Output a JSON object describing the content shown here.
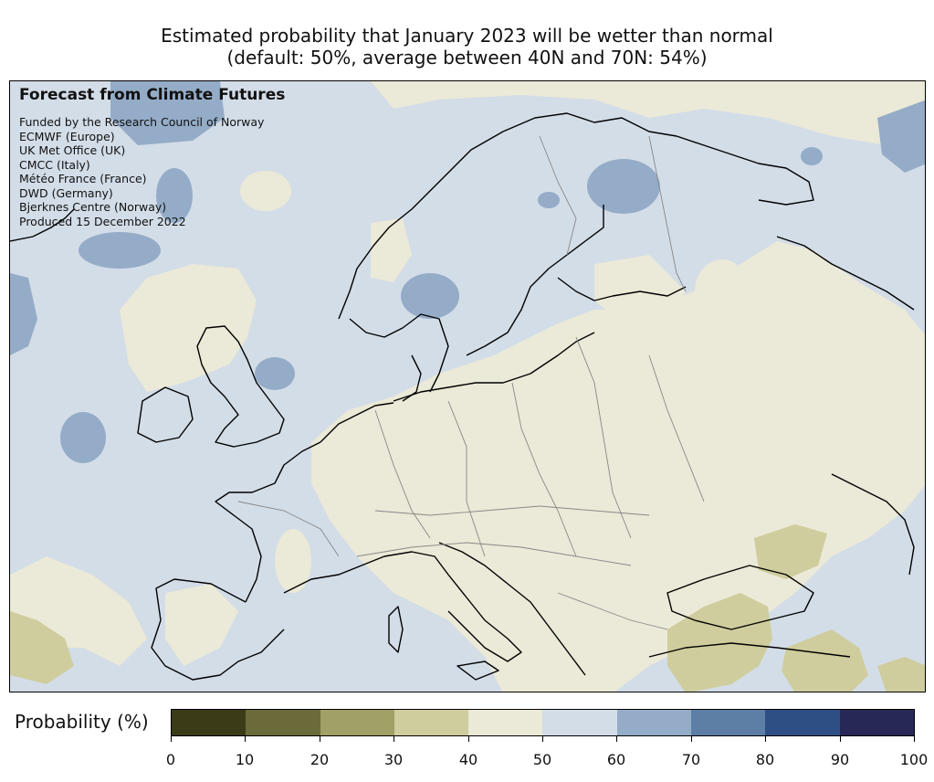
{
  "title": {
    "line1": "Estimated probability that January 2023 will be wetter than normal",
    "line2": "(default: 50%, average between 40N and 70N: 54%)"
  },
  "overlay": {
    "heading": "Forecast from Climate Futures",
    "credits": [
      "Funded by the Research Council of Norway",
      "ECMWF (Europe)",
      "UK Met Office (UK)",
      "CMCC (Italy)",
      "Météo France (France)",
      "DWD (Germany)",
      "Bjerknes Centre (Norway)",
      "Produced 15 December 2022"
    ]
  },
  "colorbar": {
    "label": "Probability (%)",
    "bins": [
      {
        "range": "0-10",
        "color": "#3b3b18"
      },
      {
        "range": "10-20",
        "color": "#6b6a3a"
      },
      {
        "range": "20-30",
        "color": "#a1a066"
      },
      {
        "range": "30-40",
        "color": "#cfcd9d"
      },
      {
        "range": "40-50",
        "color": "#ebe9d7"
      },
      {
        "range": "50-60",
        "color": "#d3dde8"
      },
      {
        "range": "60-70",
        "color": "#94acc7"
      },
      {
        "range": "70-80",
        "color": "#5d7ea5"
      },
      {
        "range": "80-90",
        "color": "#2e4f84"
      },
      {
        "range": "90-100",
        "color": "#272855"
      }
    ],
    "ticks": [
      "0",
      "10",
      "20",
      "30",
      "40",
      "50",
      "60",
      "70",
      "80",
      "90",
      "100"
    ]
  },
  "colors": {
    "below_normal_light": "#ebe9d7",
    "near_normal_wet": "#d3dde8",
    "wet_60_70": "#94acc7",
    "dry_30_40": "#cfcd9d",
    "coastline": "#000000",
    "border": "#888888"
  }
}
